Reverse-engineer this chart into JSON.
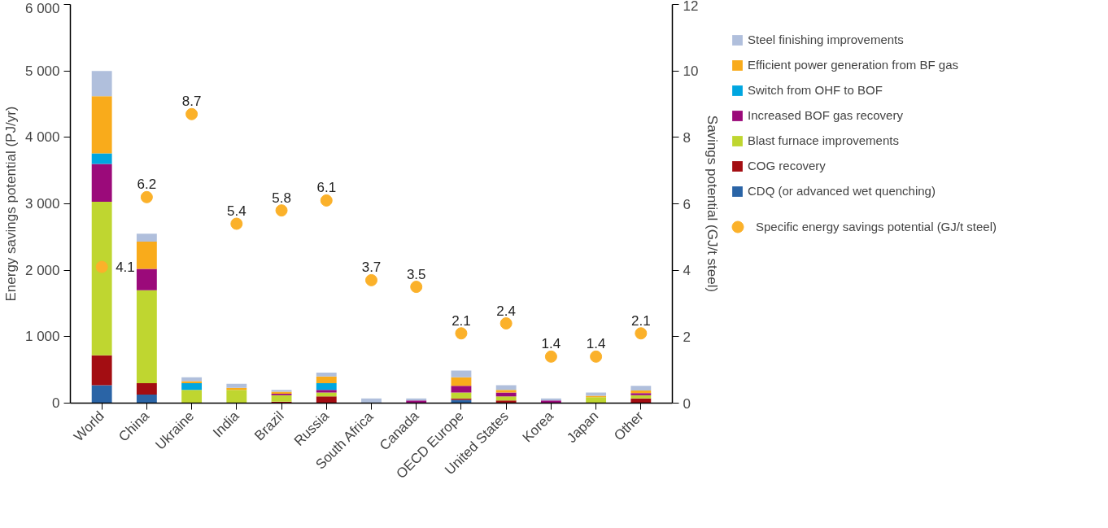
{
  "chart_data": {
    "type": "bar",
    "stacked": true,
    "ylabel": "Energy savings potential (PJ/yr)",
    "y2label": "Savings potential (GJ/t steel)",
    "categories": [
      "World",
      "China",
      "Ukraine",
      "India",
      "Brazil",
      "Russia",
      "South Africa",
      "Canada",
      "OECD Europe",
      "United States",
      "Korea",
      "Japan",
      "Other"
    ],
    "ylim": [
      0,
      6000
    ],
    "yticks": [
      0,
      {
        "value": 1000,
        "label": "1 000"
      },
      {
        "value": 2000,
        "label": "2 000"
      },
      {
        "value": 3000,
        "label": "3 000"
      },
      {
        "value": 4000,
        "label": "4 000"
      },
      {
        "value": 5000,
        "label": "5 000"
      },
      {
        "value": 6000,
        "label": "6 000"
      }
    ],
    "y2lim": [
      0,
      12
    ],
    "y2ticks": [
      0,
      2,
      4,
      6,
      8,
      10,
      12
    ],
    "grid": false,
    "legend": "right",
    "series": [
      {
        "name": "CDQ (or advanced wet quenching)",
        "color": "#2a64a6",
        "values": [
          270,
          130,
          0,
          0,
          0,
          0,
          0,
          0,
          50,
          0,
          0,
          0,
          0
        ]
      },
      {
        "name": "COG recovery",
        "color": "#a30d12",
        "values": [
          450,
          170,
          0,
          0,
          20,
          100,
          0,
          0,
          20,
          40,
          0,
          0,
          70
        ]
      },
      {
        "name": "Blast furnace improvements",
        "color": "#bfd630",
        "values": [
          2310,
          1400,
          200,
          200,
          100,
          60,
          0,
          0,
          90,
          60,
          0,
          90,
          50
        ]
      },
      {
        "name": "Increased BOF gas recovery",
        "color": "#9b0a7a",
        "values": [
          570,
          320,
          0,
          0,
          20,
          40,
          0,
          40,
          100,
          60,
          40,
          0,
          30
        ]
      },
      {
        "name": "Switch from OHF to BOF",
        "color": "#00a6e0",
        "values": [
          160,
          0,
          100,
          0,
          0,
          100,
          0,
          0,
          0,
          0,
          0,
          0,
          0
        ]
      },
      {
        "name": "Efficient power generation from BF gas",
        "color": "#f9ab1b",
        "values": [
          860,
          410,
          30,
          30,
          30,
          100,
          0,
          0,
          130,
          40,
          0,
          20,
          40
        ]
      },
      {
        "name": "Steel finishing improvements",
        "color": "#b0bfdc",
        "values": [
          380,
          120,
          60,
          60,
          30,
          60,
          70,
          30,
          100,
          70,
          30,
          50,
          70
        ]
      },
      {
        "name": "Specific energy savings potential (GJ/t steel)",
        "type": "scatter",
        "axis": "y2",
        "marker": "circle",
        "color": "#fbb12a",
        "data_labels": true,
        "values": [
          4.1,
          6.2,
          8.7,
          5.4,
          5.8,
          6.1,
          3.7,
          3.5,
          2.1,
          2.4,
          1.4,
          1.4,
          2.1
        ]
      }
    ]
  }
}
